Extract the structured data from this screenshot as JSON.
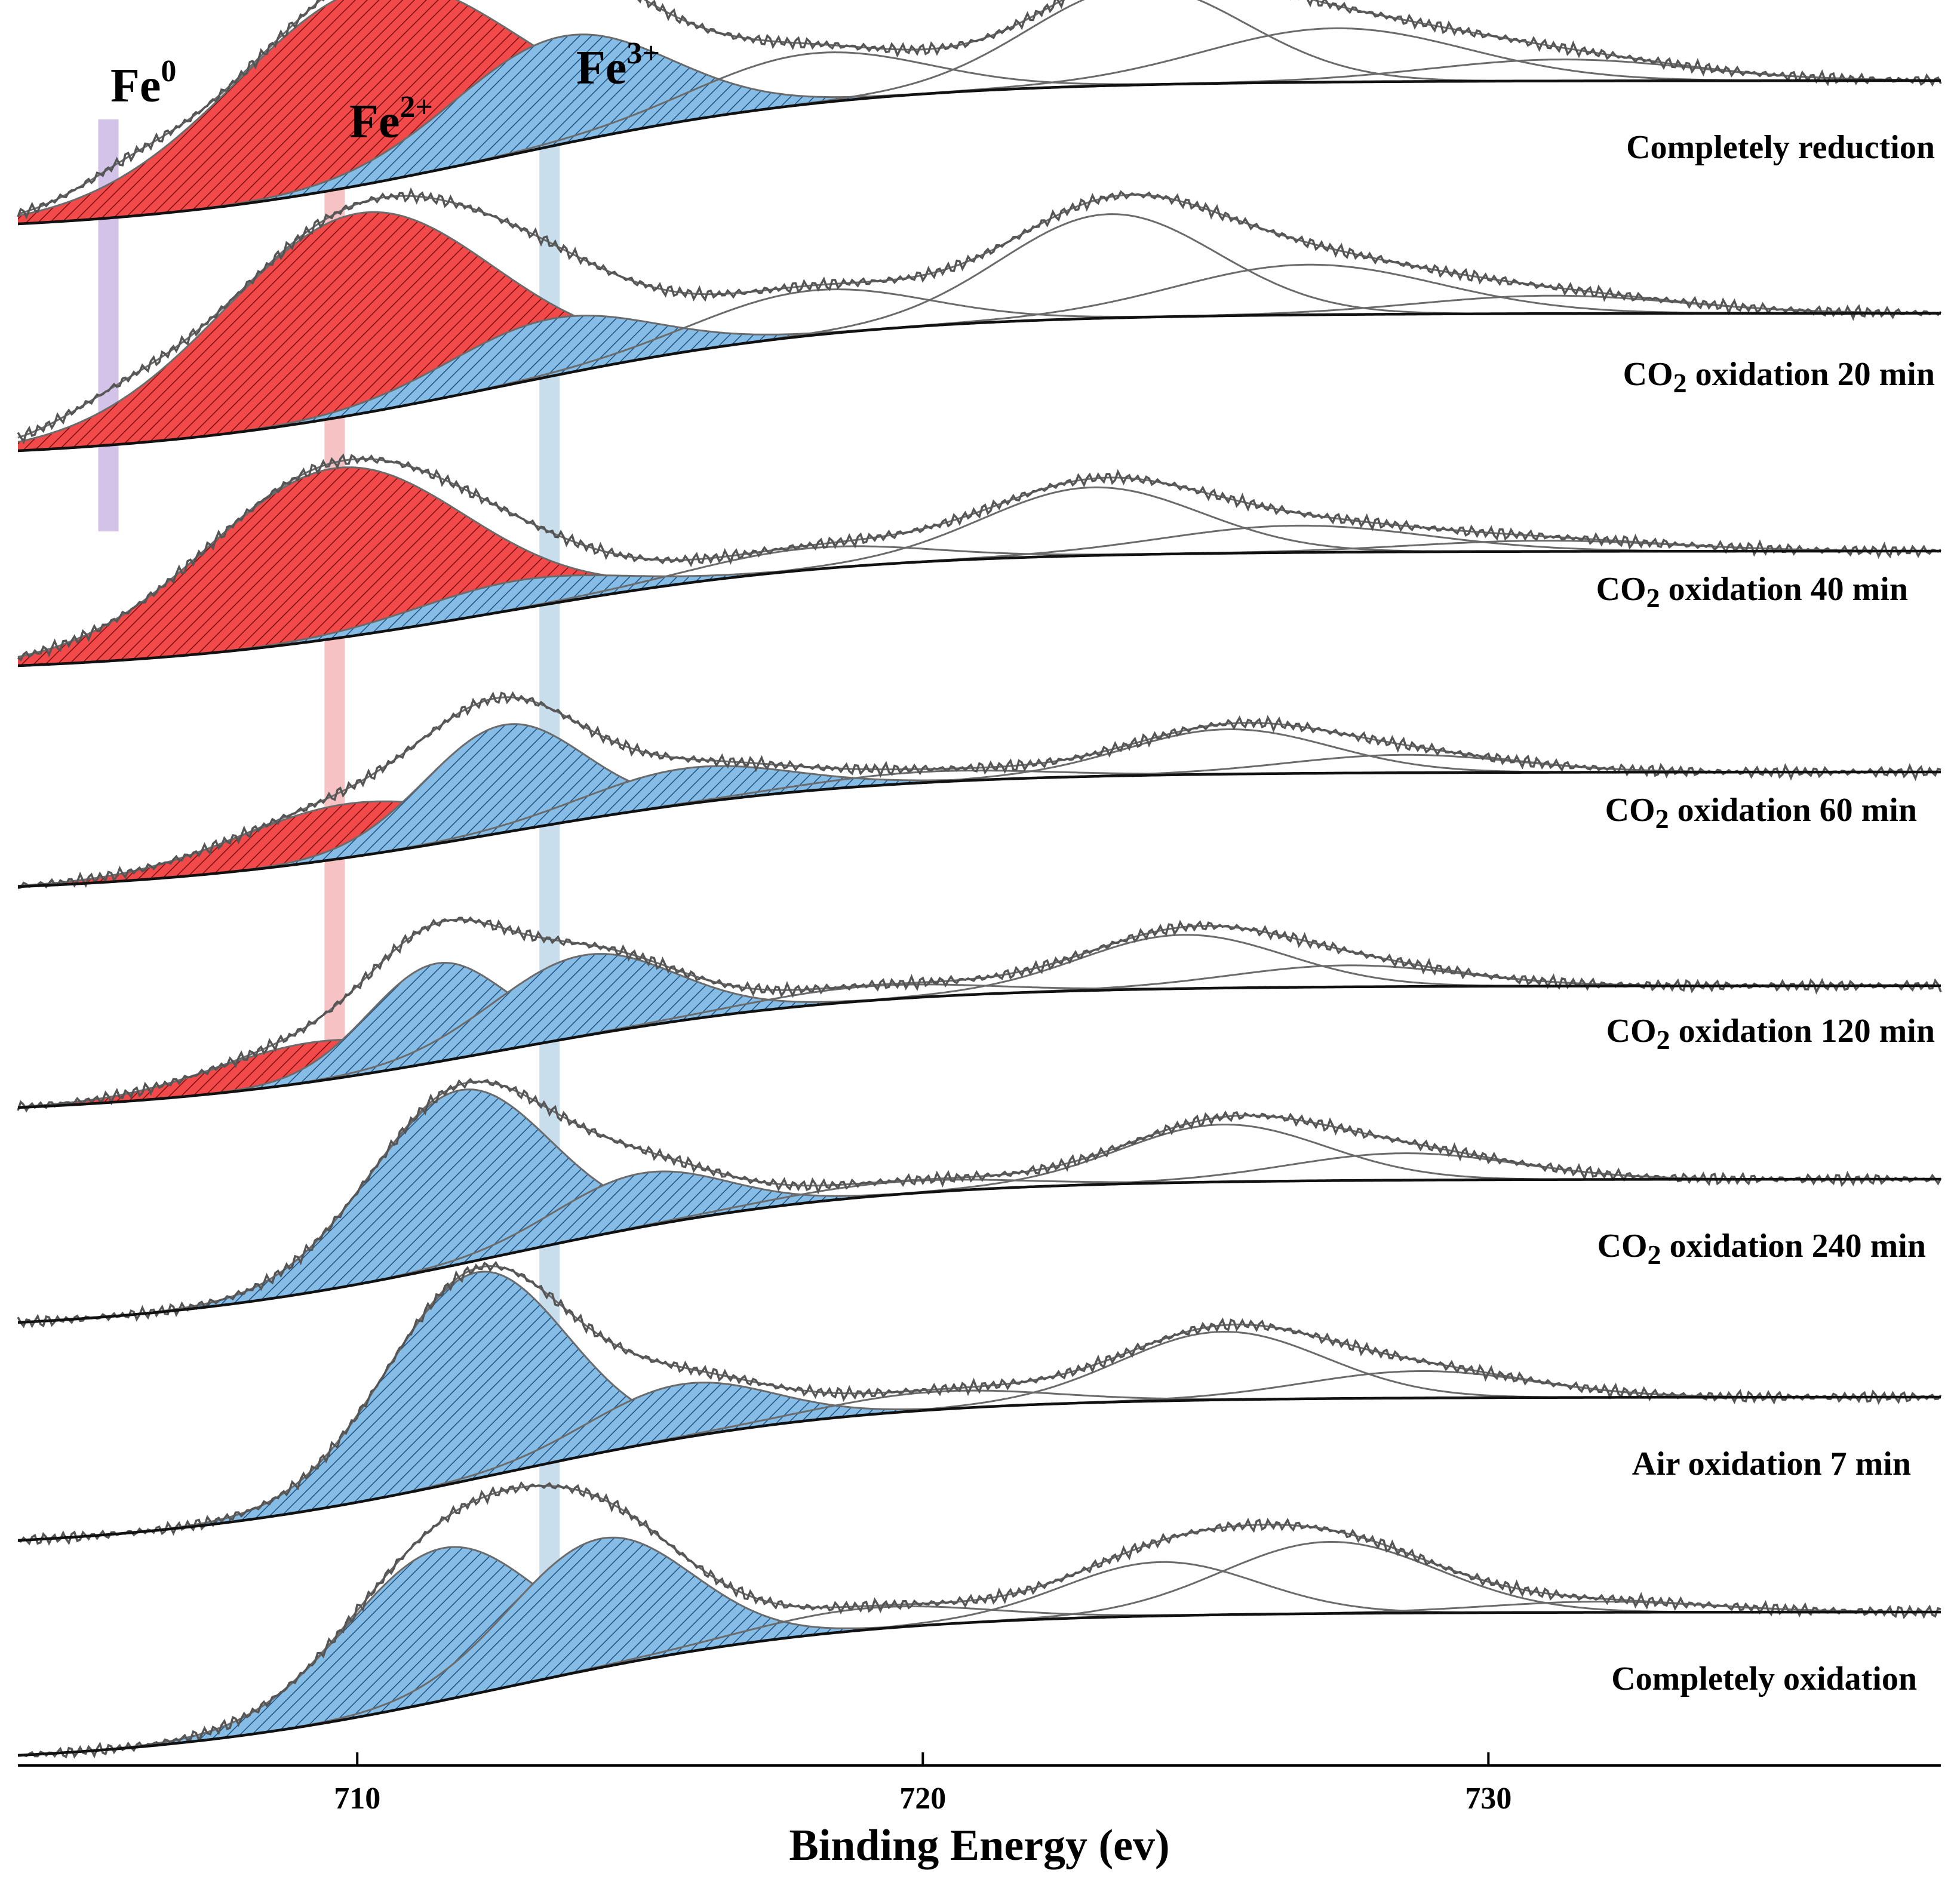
{
  "chart_data": {
    "type": "line",
    "title": "",
    "xlabel": "Binding Energy (ev)",
    "ylabel": "",
    "xlim": [
      704,
      738
    ],
    "xticks": [
      710,
      720,
      730
    ],
    "xtick_labels": [
      "710",
      "720",
      "730"
    ],
    "grid": false,
    "annotations": [
      {
        "label_main": "Fe",
        "label_sup": "0",
        "energy": 705.6,
        "band_color": "#cbb8e4"
      },
      {
        "label_main": "Fe",
        "label_sup": "2+",
        "energy": 709.6,
        "band_color": "#f6b7b9"
      },
      {
        "label_main": "Fe",
        "label_sup": "3+",
        "energy": 713.4,
        "band_color": "#bfd8ea"
      }
    ],
    "series": [
      {
        "name": "Completely reduction",
        "label_main": "Completely reduction",
        "label_sub": "",
        "label_tail": "",
        "baseline_start": 0.0,
        "baseline_end": 1.0,
        "components": [
          {
            "type": "Fe0",
            "center": 705.9,
            "height": 0.09,
            "width": 0.9
          },
          {
            "type": "Fe2+",
            "center": 710.3,
            "height": 1.1,
            "width": 2.5
          },
          {
            "type": "Fe3+",
            "center": 713.6,
            "height": 0.6,
            "width": 1.9
          },
          {
            "type": "satellite",
            "center": 718.0,
            "height": 0.28,
            "width": 2.0
          },
          {
            "type": "satellite",
            "center": 723.8,
            "height": 0.55,
            "width": 1.9
          },
          {
            "type": "satellite",
            "center": 727.3,
            "height": 0.3,
            "width": 2.3
          },
          {
            "type": "satellite",
            "center": 731.3,
            "height": 0.12,
            "width": 2.3
          }
        ]
      },
      {
        "name": "CO2 oxidation 20 min",
        "label_main": "CO",
        "label_sub": "2",
        "label_tail": " oxidation 20 min",
        "baseline_start": 0.0,
        "baseline_end": 0.96,
        "components": [
          {
            "type": "Fe0",
            "center": 705.7,
            "height": 0.1,
            "width": 1.0
          },
          {
            "type": "Fe2+",
            "center": 710.0,
            "height": 1.12,
            "width": 2.4
          },
          {
            "type": "Fe3+",
            "center": 713.4,
            "height": 0.32,
            "width": 1.8
          },
          {
            "type": "satellite",
            "center": 718.0,
            "height": 0.25,
            "width": 2.0
          },
          {
            "type": "satellite",
            "center": 723.3,
            "height": 0.58,
            "width": 1.9
          },
          {
            "type": "satellite",
            "center": 726.8,
            "height": 0.28,
            "width": 2.3
          },
          {
            "type": "satellite",
            "center": 731.1,
            "height": 0.1,
            "width": 2.3
          }
        ]
      },
      {
        "name": "CO2 oxidation 40 min",
        "label_main": "CO",
        "label_sub": "2",
        "label_tail": " oxidation 40 min",
        "baseline_start": 0.0,
        "baseline_end": 0.8,
        "components": [
          {
            "type": "Fe2+",
            "center": 709.6,
            "height": 0.95,
            "width": 2.3
          },
          {
            "type": "Fe3+",
            "center": 712.8,
            "height": 0.16,
            "width": 1.8
          },
          {
            "type": "satellite",
            "center": 718.0,
            "height": 0.12,
            "width": 2.0
          },
          {
            "type": "satellite",
            "center": 723.0,
            "height": 0.38,
            "width": 1.9
          },
          {
            "type": "satellite",
            "center": 726.6,
            "height": 0.15,
            "width": 2.3
          },
          {
            "type": "satellite",
            "center": 731.0,
            "height": 0.06,
            "width": 2.3
          }
        ]
      },
      {
        "name": "CO2 oxidation 60 min",
        "label_main": "CO",
        "label_sub": "2",
        "label_tail": " oxidation 60 min",
        "baseline_start": 0.0,
        "baseline_end": 0.8,
        "components": [
          {
            "type": "Fe2+",
            "center": 709.8,
            "height": 0.3,
            "width": 2.0
          },
          {
            "type": "Fe3+",
            "center": 712.6,
            "height": 0.6,
            "width": 1.4
          },
          {
            "type": "Fe3+",
            "center": 715.8,
            "height": 0.2,
            "width": 1.8
          },
          {
            "type": "satellite",
            "center": 720.0,
            "height": 0.06,
            "width": 2.0
          },
          {
            "type": "satellite",
            "center": 725.4,
            "height": 0.25,
            "width": 1.8
          },
          {
            "type": "satellite",
            "center": 728.5,
            "height": 0.1,
            "width": 2.0
          }
        ]
      },
      {
        "name": "CO2 oxidation 120 min",
        "label_main": "CO",
        "label_sub": "2",
        "label_tail": " oxidation 120 min",
        "baseline_start": 0.0,
        "baseline_end": 0.85,
        "components": [
          {
            "type": "Fe2+",
            "center": 709.2,
            "height": 0.22,
            "width": 1.8
          },
          {
            "type": "Fe3+",
            "center": 711.4,
            "height": 0.55,
            "width": 1.2
          },
          {
            "type": "Fe3+",
            "center": 714.0,
            "height": 0.45,
            "width": 1.6
          },
          {
            "type": "satellite",
            "center": 719.0,
            "height": 0.08,
            "width": 2.0
          },
          {
            "type": "satellite",
            "center": 724.6,
            "height": 0.3,
            "width": 1.8
          },
          {
            "type": "satellite",
            "center": 727.5,
            "height": 0.12,
            "width": 2.0
          }
        ]
      },
      {
        "name": "CO2 oxidation 240 min",
        "label_main": "CO",
        "label_sub": "2",
        "label_tail": " oxidation 240 min",
        "baseline_start": 0.0,
        "baseline_end": 1.0,
        "components": [
          {
            "type": "Fe3+",
            "center": 711.8,
            "height": 0.97,
            "width": 1.6
          },
          {
            "type": "Fe3+",
            "center": 715.0,
            "height": 0.3,
            "width": 1.5
          },
          {
            "type": "satellite",
            "center": 719.5,
            "height": 0.07,
            "width": 2.0
          },
          {
            "type": "satellite",
            "center": 725.3,
            "height": 0.32,
            "width": 1.8
          },
          {
            "type": "satellite",
            "center": 728.5,
            "height": 0.15,
            "width": 2.0
          }
        ]
      },
      {
        "name": "Air oxidation 7 min",
        "label_main": "Air oxidation 7 min",
        "label_sub": "",
        "label_tail": "",
        "baseline_start": 0.0,
        "baseline_end": 1.0,
        "components": [
          {
            "type": "Fe3+",
            "center": 712.1,
            "height": 1.15,
            "width": 1.6
          },
          {
            "type": "Fe3+",
            "center": 715.7,
            "height": 0.3,
            "width": 1.6
          },
          {
            "type": "satellite",
            "center": 720.2,
            "height": 0.1,
            "width": 2.0
          },
          {
            "type": "satellite",
            "center": 725.3,
            "height": 0.38,
            "width": 1.8
          },
          {
            "type": "satellite",
            "center": 728.8,
            "height": 0.15,
            "width": 2.0
          }
        ]
      },
      {
        "name": "Completely oxidation",
        "label_main": "Completely oxidation",
        "label_sub": "",
        "label_tail": "",
        "baseline_start": 0.0,
        "baseline_end": 1.0,
        "components": [
          {
            "type": "Fe3+",
            "center": 711.5,
            "height": 0.85,
            "width": 1.7
          },
          {
            "type": "Fe3+",
            "center": 714.3,
            "height": 0.72,
            "width": 1.6
          },
          {
            "type": "satellite",
            "center": 719.0,
            "height": 0.12,
            "width": 2.0
          },
          {
            "type": "satellite",
            "center": 724.2,
            "height": 0.3,
            "width": 1.7
          },
          {
            "type": "satellite",
            "center": 727.2,
            "height": 0.4,
            "width": 1.9
          },
          {
            "type": "satellite",
            "center": 732.0,
            "height": 0.06,
            "width": 2.0
          }
        ]
      }
    ]
  },
  "colors": {
    "fe0_fill": "#9b59e8",
    "fe2_fill": "#f24a4a",
    "fe3_fill": "#86bde6",
    "component_line": "#6b6b6b",
    "envelope_line": "#555555",
    "baseline_line": "#111111"
  }
}
